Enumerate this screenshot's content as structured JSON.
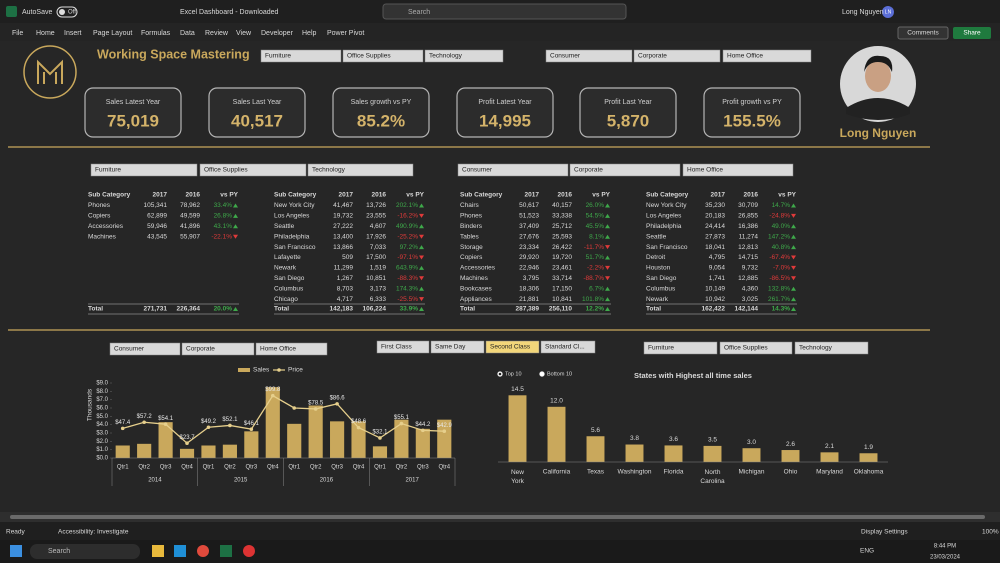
{
  "window": {
    "autosave": "AutoSave",
    "autosave_state": "Off",
    "file_title": "Excel Dashboard - Downloaded",
    "search": "Search",
    "user": "Long Nguyen",
    "user_initials": "LN"
  },
  "ribbon": {
    "tabs": [
      "File",
      "Home",
      "Insert",
      "Page Layout",
      "Formulas",
      "Data",
      "Review",
      "View",
      "Developer",
      "Help",
      "Power Pivot"
    ],
    "comments": "Comments",
    "share": "Share"
  },
  "dashboard": {
    "brand": "Working Space Mastering",
    "owner": "Long Nguyen",
    "category_slicer": [
      "Furniture",
      "Office Supplies",
      "Technology"
    ],
    "segment_slicer": [
      "Consumer",
      "Corporate",
      "Home Office"
    ],
    "kpis": [
      {
        "label": "Sales Latest Year",
        "value": "75,019"
      },
      {
        "label": "Sales Last Year",
        "value": "40,517"
      },
      {
        "label": "Sales growth vs PY",
        "value": "85.2%"
      },
      {
        "label": "Profit Latest Year",
        "value": "14,995"
      },
      {
        "label": "Profit Last Year",
        "value": "5,870"
      },
      {
        "label": "Profit growth vs PY",
        "value": "155.5%"
      }
    ],
    "table_slicers": [
      [
        "Furniture",
        "Office Supplies",
        "Technology"
      ],
      [
        "Consumer",
        "Corporate",
        "Home Office"
      ]
    ],
    "tables": [
      {
        "header": [
          "Sub Category",
          "2017",
          "2016",
          "vs PY"
        ],
        "rows": [
          [
            "Phones",
            "105,341",
            "78,962",
            "33.4%"
          ],
          [
            "Copiers",
            "62,899",
            "49,599",
            "26.8%"
          ],
          [
            "Accessories",
            "59,946",
            "41,896",
            "43.1%"
          ],
          [
            "Machines",
            "43,545",
            "55,907",
            "-22.1%"
          ]
        ],
        "total": [
          "Total",
          "271,731",
          "226,364",
          "20.0%"
        ]
      },
      {
        "header": [
          "Sub Category",
          "2017",
          "2016",
          "vs PY"
        ],
        "rows": [
          [
            "New York City",
            "41,467",
            "13,726",
            "202.1%"
          ],
          [
            "Los Angeles",
            "19,732",
            "23,555",
            "-16.2%"
          ],
          [
            "Seattle",
            "27,222",
            "4,607",
            "490.9%"
          ],
          [
            "Philadelphia",
            "13,400",
            "17,926",
            "-25.2%"
          ],
          [
            "San Francisco",
            "13,866",
            "7,033",
            "97.2%"
          ],
          [
            "Lafayette",
            "509",
            "17,500",
            "-97.1%"
          ],
          [
            "Newark",
            "11,299",
            "1,519",
            "643.9%"
          ],
          [
            "San Diego",
            "1,267",
            "10,851",
            "-88.3%"
          ],
          [
            "Columbus",
            "8,703",
            "3,173",
            "174.3%"
          ],
          [
            "Chicago",
            "4,717",
            "6,333",
            "-25.5%"
          ]
        ],
        "total": [
          "Total",
          "142,183",
          "106,224",
          "33.9%"
        ]
      },
      {
        "header": [
          "Sub Category",
          "2017",
          "2016",
          "vs PY"
        ],
        "rows": [
          [
            "Chairs",
            "50,617",
            "40,157",
            "26.0%"
          ],
          [
            "Phones",
            "51,523",
            "33,338",
            "54.5%"
          ],
          [
            "Binders",
            "37,409",
            "25,712",
            "45.5%"
          ],
          [
            "Tables",
            "27,676",
            "25,593",
            "8.1%"
          ],
          [
            "Storage",
            "23,334",
            "26,422",
            "-11.7%"
          ],
          [
            "Copiers",
            "29,920",
            "19,720",
            "51.7%"
          ],
          [
            "Accessories",
            "22,946",
            "23,461",
            "-2.2%"
          ],
          [
            "Machines",
            "3,795",
            "33,714",
            "-88.7%"
          ],
          [
            "Bookcases",
            "18,306",
            "17,150",
            "6.7%"
          ],
          [
            "Appliances",
            "21,881",
            "10,841",
            "101.8%"
          ]
        ],
        "total": [
          "Total",
          "287,389",
          "256,110",
          "12.2%"
        ]
      },
      {
        "header": [
          "Sub Category",
          "2017",
          "2016",
          "vs PY"
        ],
        "rows": [
          [
            "New York City",
            "35,230",
            "30,709",
            "14.7%"
          ],
          [
            "Los Angeles",
            "20,183",
            "26,855",
            "-24.8%"
          ],
          [
            "Philadelphia",
            "24,414",
            "16,386",
            "49.0%"
          ],
          [
            "Seattle",
            "27,873",
            "11,274",
            "147.2%"
          ],
          [
            "San Francisco",
            "18,041",
            "12,813",
            "40.8%"
          ],
          [
            "Detroit",
            "4,795",
            "14,715",
            "-67.4%"
          ],
          [
            "Houston",
            "9,054",
            "9,732",
            "-7.0%"
          ],
          [
            "San Diego",
            "1,741",
            "12,885",
            "-86.5%"
          ],
          [
            "Columbus",
            "10,149",
            "4,360",
            "132.8%"
          ],
          [
            "Newark",
            "10,942",
            "3,025",
            "261.7%"
          ]
        ],
        "total": [
          "Total",
          "162,422",
          "142,144",
          "14.3%"
        ]
      }
    ],
    "chart_slicers": [
      [
        "Consumer",
        "Corporate",
        "Home Office"
      ],
      [
        "First Class",
        "Same Day",
        "Second Class",
        "Standard Cl..."
      ],
      [
        "Furniture",
        "Office Supplies",
        "Technology"
      ]
    ],
    "selected_ship_mode": "Second Class",
    "charts": [
      {
        "type": "combo",
        "y_label": "Thousands",
        "categories": [
          "Qtr1",
          "Qtr2",
          "Qtr3",
          "Qtr4",
          "Qtr1",
          "Qtr2",
          "Qtr3",
          "Qtr4",
          "Qtr1",
          "Qtr2",
          "Qtr3",
          "Qtr4",
          "Qtr1",
          "Qtr2",
          "Qtr3",
          "Qtr4"
        ],
        "groups": [
          "2014",
          "2015",
          "2016",
          "2017"
        ],
        "ylim": [
          0,
          9
        ],
        "yticks": [
          {
            "value": 0,
            "label": "$0.0"
          },
          {
            "value": 1,
            "label": "$1.0"
          },
          {
            "value": 2,
            "label": "$2.0"
          },
          {
            "value": 3,
            "label": "$3.0"
          },
          {
            "value": 4,
            "label": "$4.0"
          },
          {
            "value": 5,
            "label": "$5.0"
          },
          {
            "value": 6,
            "label": "$6.0"
          },
          {
            "value": 7,
            "label": "$7.0"
          },
          {
            "value": 8,
            "label": "$8.0"
          },
          {
            "value": 9,
            "label": "$9.0"
          }
        ],
        "y2lim": [
          0,
          120
        ],
        "series": [
          {
            "name": "Sales",
            "type": "bar",
            "color": "#c9a85c",
            "values": [
              1.5,
              1.7,
              4.3,
              1.1,
              1.5,
              1.6,
              3.2,
              8.5,
              4.1,
              6.3,
              4.4,
              4.4,
              1.4,
              4.6,
              3.5,
              4.6
            ]
          },
          {
            "name": "Price",
            "type": "line",
            "axis": "y2",
            "color": "#e6cf8c",
            "values": [
              47.4,
              57.2,
              54.1,
              23.7,
              49.2,
              52.1,
              46.1,
              99.8,
              80.0,
              78.5,
              86.6,
              48.6,
              32.1,
              55.1,
              44.2,
              42.9
            ],
            "value_labels": [
              "$47.4",
              "$57.2",
              "$54.1",
              "$23.7",
              "$49.2",
              "$52.1",
              "$46.1",
              "$99.8",
              null,
              "$78.5",
              "$86.6",
              "$48.6",
              "$32.1",
              "$55.1",
              "$44.2",
              "$42.9"
            ]
          }
        ]
      },
      {
        "type": "bar",
        "title": "States with Highest all time sales",
        "options": [
          "Top 10",
          "Bottom 10"
        ],
        "selected_option": "Top 10",
        "categories": [
          "New York",
          "California",
          "Texas",
          "Washington",
          "Florida",
          "North Carolina",
          "Michigan",
          "Ohio",
          "Maryland",
          "Oklahoma"
        ],
        "values": [
          14.5,
          12.0,
          5.6,
          3.8,
          3.6,
          3.5,
          3.0,
          2.6,
          2.1,
          1.9
        ],
        "value_labels": [
          "14.5",
          "12.0",
          "5.6",
          "3.8",
          "3.6",
          "3.5",
          "3.0",
          "2.6",
          "2.1",
          "1.9"
        ],
        "ylim": [
          0,
          15
        ],
        "color": "#c9a85c"
      }
    ]
  },
  "status": {
    "ready": "Ready",
    "accessibility": "Accessibility: Investigate",
    "display": "Display Settings",
    "zoom": "100%"
  },
  "taskbar": {
    "search": "Search",
    "language": "ENG",
    "time": "8:44 PM",
    "date": "23/03/2024"
  }
}
